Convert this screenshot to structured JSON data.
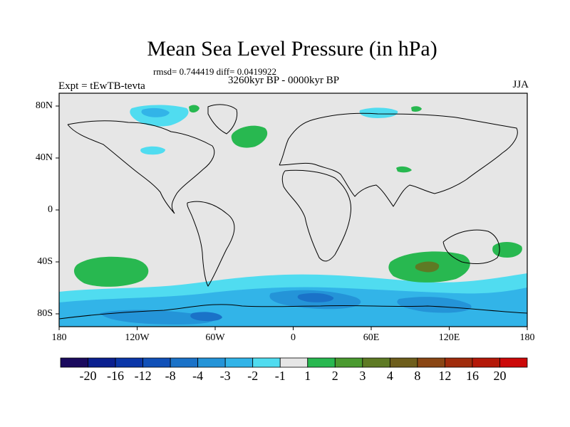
{
  "map": {
    "title": "Mean Sea Level Pressure (in hPa)",
    "stats": "rmsd= 0.744419 diff= 0.0419922",
    "experiment": "Expt = tEwTB-tevta",
    "period": "3260kyr BP - 0000kyr BP",
    "season": "JJA",
    "lat_labels": [
      "80N",
      "40N",
      "0",
      "40S",
      "80S"
    ],
    "lon_labels": [
      "180",
      "120W",
      "60W",
      "0",
      "60E",
      "120E",
      "180"
    ],
    "background_color": "#e6e6e6"
  },
  "colorbar": {
    "colors": [
      "#1a0a5e",
      "#0a1f8f",
      "#0a36a8",
      "#1050b8",
      "#1a72c8",
      "#2494d8",
      "#32b4e8",
      "#50dcf0",
      "#e6e6e6",
      "#28b850",
      "#4a9a30",
      "#5e7a24",
      "#6e5e1c",
      "#8a4614",
      "#a02c0c",
      "#b41808",
      "#cc0808"
    ],
    "labels": [
      "-20",
      "-16",
      "-12",
      "-8",
      "-4",
      "-3",
      "-2",
      "-1",
      "1",
      "2",
      "3",
      "4",
      "8",
      "12",
      "16",
      "20"
    ]
  }
}
